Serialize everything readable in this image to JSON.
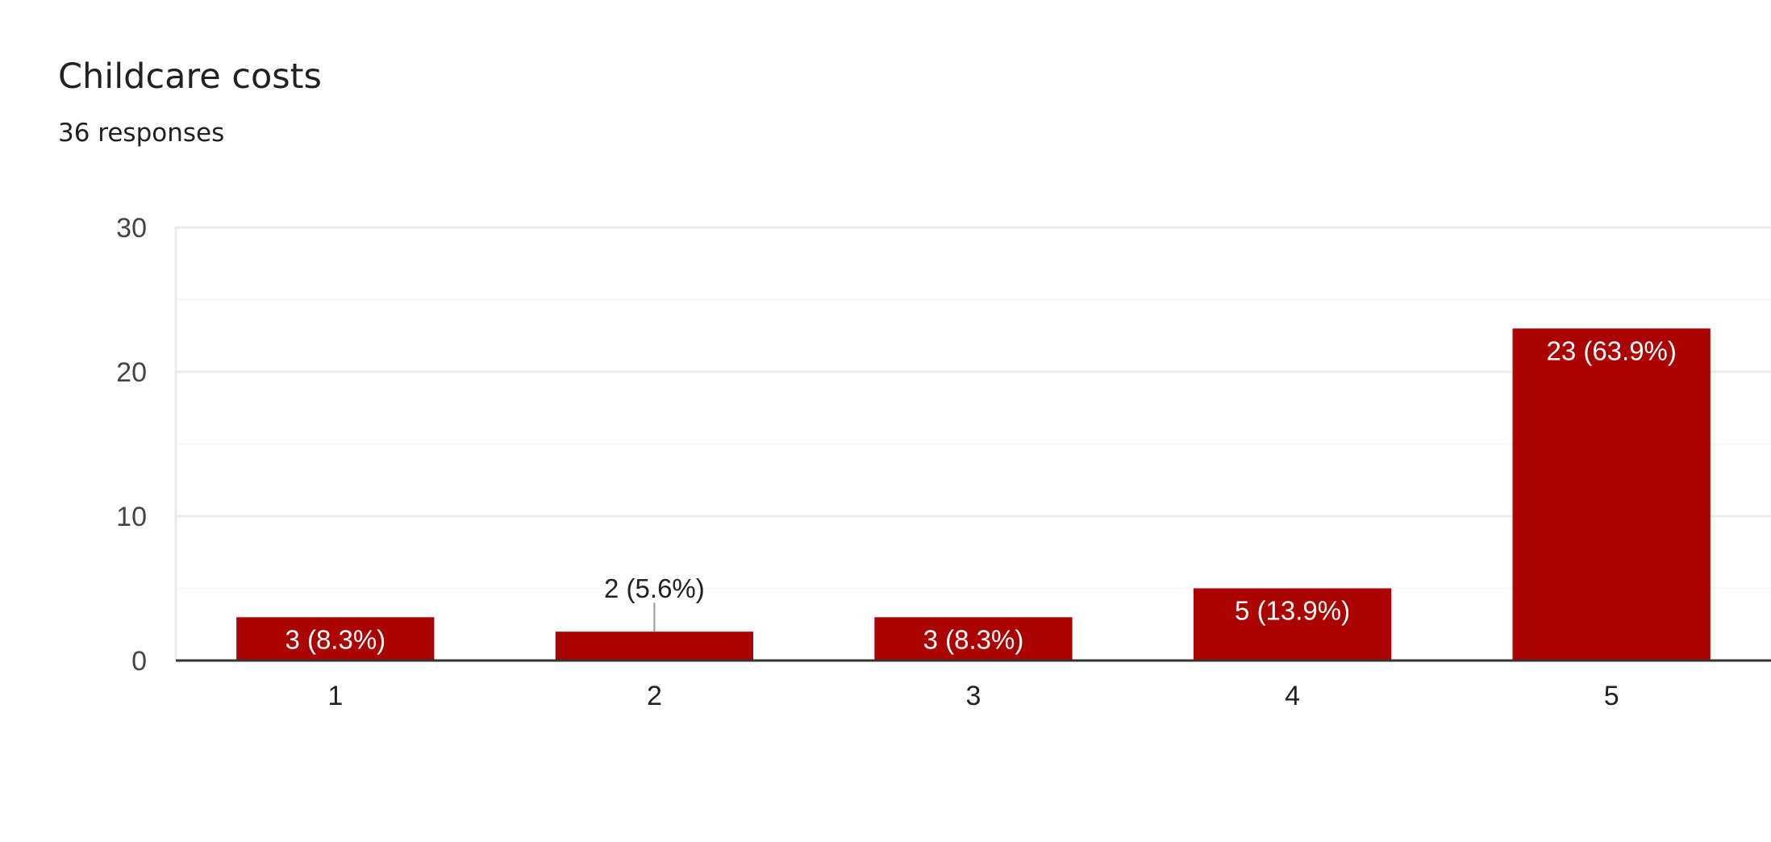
{
  "chart_data": {
    "type": "bar",
    "title": "Childcare costs",
    "subtitle": "36 responses",
    "categories": [
      "1",
      "2",
      "3",
      "4",
      "5"
    ],
    "values": [
      3,
      2,
      3,
      5,
      23
    ],
    "data_labels": [
      "3 (8.3%)",
      "2 (5.6%)",
      "3 (8.3%)",
      "5 (13.9%)",
      "23 (63.9%)"
    ],
    "ylim": [
      0,
      30
    ],
    "yticks": [
      0,
      10,
      20,
      30
    ],
    "grid": true,
    "xlabel": "",
    "ylabel": "",
    "bar_color": "#ab0202"
  }
}
